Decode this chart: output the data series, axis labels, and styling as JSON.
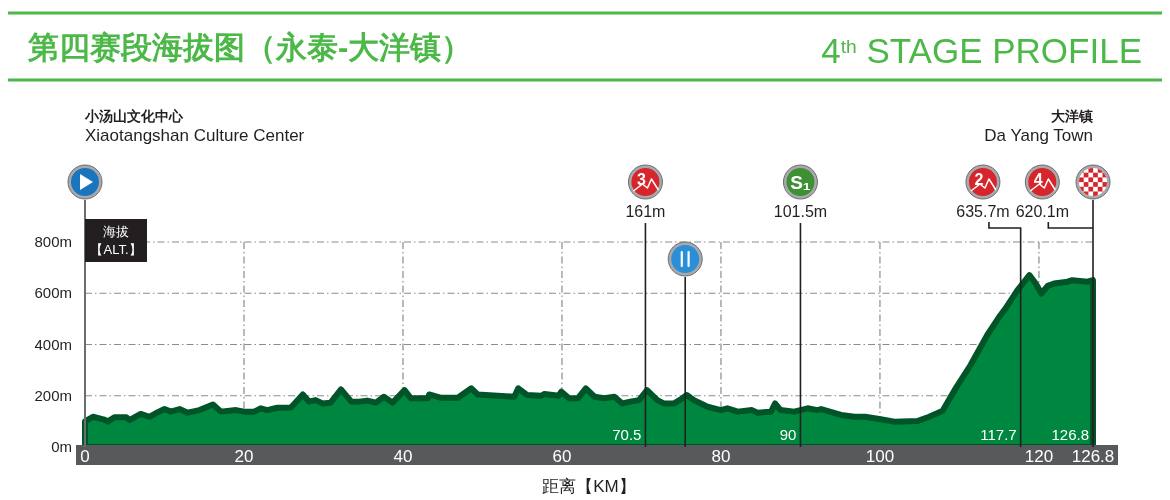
{
  "chart_data": {
    "type": "area",
    "title": "第四赛段海拔图（永泰-大洋镇）",
    "subtitle": "4$^{th}$ STAGE PROFILE",
    "xlabel": "距离【KM】",
    "ylabel": "海拔【ALT.】",
    "x": [
      0,
      1.0,
      2.3,
      2.9,
      3.7,
      5.2,
      5.6,
      7.0,
      8.1,
      9.1,
      10.0,
      10.8,
      11.9,
      12.9,
      14.4,
      16.1,
      17.1,
      19.0,
      20.0,
      21.3,
      22.1,
      22.9,
      24.2,
      25.9,
      27.4,
      28.2,
      29.0,
      29.9,
      30.9,
      32.2,
      33.5,
      34.5,
      35.5,
      36.6,
      37.6,
      38.7,
      40.2,
      41.0,
      43.1,
      43.3,
      44.8,
      46.9,
      48.6,
      49.4,
      54.0,
      54.5,
      55.6,
      57.4,
      57.8,
      59.6,
      59.9,
      60.9,
      62.0,
      63.0,
      64.1,
      65.3,
      66.6,
      67.6,
      68.6,
      69.7,
      70.7,
      72.0,
      72.8,
      74.1,
      74.9,
      75.7,
      76.6,
      78.3,
      80.0,
      80.8,
      82.1,
      83.9,
      84.6,
      86.3,
      86.8,
      87.5,
      89.2,
      90.9,
      92.1,
      92.6,
      95.1,
      96.8,
      98.1,
      99.3,
      100.1,
      101.8,
      104.7,
      106.2,
      107.9,
      109.6,
      111.4,
      113.5,
      115.0,
      115.8,
      117.3,
      118.8,
      119.6,
      120.3,
      121.1,
      121.9,
      123.6,
      124.2,
      126.1,
      126.8
    ],
    "values": [
      100,
      118,
      108,
      100,
      116,
      116,
      105,
      129,
      118,
      135,
      148,
      138,
      148,
      134,
      144,
      166,
      138,
      144,
      138,
      138,
      151,
      144,
      153,
      154,
      205,
      177,
      183,
      170,
      173,
      225,
      177,
      177,
      181,
      173,
      196,
      173,
      222,
      190,
      190,
      205,
      192,
      192,
      229,
      205,
      196,
      229,
      203,
      200,
      207,
      200,
      216,
      190,
      190,
      229,
      196,
      190,
      196,
      170,
      177,
      183,
      222,
      183,
      170,
      170,
      185,
      203,
      183,
      157,
      144,
      151,
      138,
      144,
      134,
      138,
      170,
      144,
      138,
      151,
      144,
      148,
      125,
      118,
      118,
      112,
      108,
      99,
      101,
      118,
      142,
      233,
      320,
      437,
      508,
      541,
      612,
      671,
      638,
      599,
      629,
      638,
      645,
      651,
      645,
      651
    ],
    "color": "#00873f",
    "xlim": [
      0,
      126.8
    ],
    "ylim": [
      0,
      800
    ],
    "xticks": [
      0,
      20,
      40,
      60,
      80,
      100,
      120,
      126.8
    ],
    "yticks": [
      {
        "value": 0,
        "label": "0m"
      },
      {
        "value": 200,
        "label": "200m"
      },
      {
        "value": 400,
        "label": "400m"
      },
      {
        "value": 600,
        "label": "600m"
      },
      {
        "value": 800,
        "label": "800m"
      }
    ],
    "grid": true,
    "ref_lines": [
      {
        "axis": "x",
        "value": 70.5,
        "label": "70.5"
      },
      {
        "axis": "x",
        "value": 75.5
      },
      {
        "axis": "x",
        "value": 90,
        "label": "90"
      },
      {
        "axis": "x",
        "value": 117.7,
        "label": "117.7"
      },
      {
        "axis": "x",
        "value": 126.8,
        "label": "126.8"
      }
    ],
    "annotations": [
      "小汤山文化中心",
      "Xiaotangshan Culture Center",
      "大洋镇",
      "Da Yang Town",
      "3",
      "161m",
      "S₁",
      "101.5m",
      "2",
      "635.7m",
      "4",
      "620.1m"
    ]
  }
}
